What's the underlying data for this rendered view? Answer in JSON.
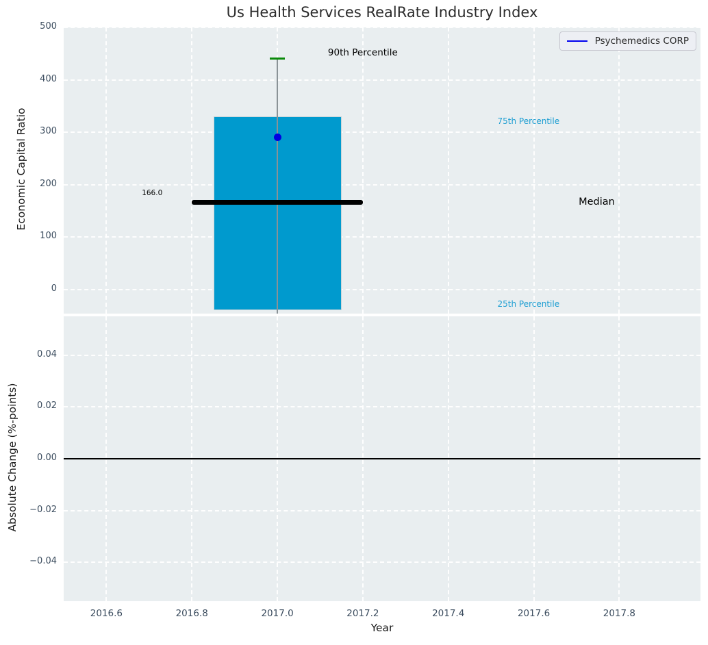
{
  "colors": {
    "plot_background": "#e9eef0",
    "grid": "#ffffff",
    "tick_label": "#3b4c5e",
    "bar": "#009ace",
    "median_line": "#000000",
    "percentile_cap": "#0a8a0a",
    "company_series": "#0000e0",
    "percentile_text": "#1d9ed2"
  },
  "chart_data": [
    {
      "type": "bar",
      "title": "Us Health Services RealRate Industry Index",
      "ylabel": "Economic Capital Ratio",
      "xlim": [
        2016.5,
        2017.99
      ],
      "ylim": [
        -46,
        500
      ],
      "grid": "white dashed, on",
      "legend": {
        "label": "Psychemedics CORP",
        "line_color": "#0000ee",
        "position": "upper right"
      },
      "y_ticks": [
        500,
        400,
        300,
        200,
        100,
        0
      ],
      "y_tick_labels": [
        "500",
        "400",
        "300",
        "200",
        "100",
        "0"
      ],
      "x_ticks": [
        2016.6,
        2016.8,
        2017.0,
        2017.2,
        2017.4,
        2017.6,
        2017.8
      ],
      "bar": {
        "x": 2017.0,
        "width": 0.3,
        "bottom": -40,
        "top": 330,
        "color": "#009ace",
        "meaning": "25th to 75th percentile range"
      },
      "median": {
        "value": 166.0,
        "label": "166.0",
        "x_from": 2016.8,
        "x_to": 2017.2,
        "color": "#000000"
      },
      "whisker": {
        "x": 2017.0,
        "y_from": -46,
        "y_to": 440,
        "color": "#8a9296",
        "cap": {
          "value": 440,
          "color": "#0a8a0a",
          "meaning": "90th percentile"
        }
      },
      "point": {
        "x": 2017.0,
        "y": 291,
        "color": "#0000e0",
        "label": "Psychemedics CORP"
      },
      "annotations": [
        {
          "text": "90th Percentile",
          "x": 2017.2,
          "y": 452,
          "anchor": "middle",
          "color": "#000000",
          "size": 13.5
        },
        {
          "text": "75th Percentile",
          "x": 2017.515,
          "y": 321,
          "anchor": "start",
          "color": "#1d9ed2",
          "size": 12
        },
        {
          "text": "Median",
          "x": 2017.705,
          "y": 167,
          "anchor": "start",
          "color": "#000000",
          "size": 14.5
        },
        {
          "text": "25th Percentile",
          "x": 2017.515,
          "y": -28,
          "anchor": "start",
          "color": "#1d9ed2",
          "size": 12
        },
        {
          "text": "166.0",
          "x": 2016.683,
          "y": 184,
          "anchor": "start",
          "color": "#000000",
          "size": 10.5
        }
      ]
    },
    {
      "type": "line",
      "ylabel": "Absolute Change (%-points)",
      "xlabel": "Year",
      "xlim": [
        2016.5,
        2017.99
      ],
      "ylim": [
        -0.055,
        0.055
      ],
      "grid": "white dashed, on",
      "y_ticks": [
        0.04,
        0.02,
        0.0,
        -0.02,
        -0.04
      ],
      "y_tick_labels": [
        "0.04",
        "0.02",
        "0.00",
        "−0.02",
        "−0.04"
      ],
      "x_ticks": [
        2016.6,
        2016.8,
        2017.0,
        2017.2,
        2017.4,
        2017.6,
        2017.8
      ],
      "x_tick_labels": [
        "2016.6",
        "2016.8",
        "2017.0",
        "2017.2",
        "2017.4",
        "2017.6",
        "2017.8"
      ],
      "zero_line": 0.0
    }
  ]
}
